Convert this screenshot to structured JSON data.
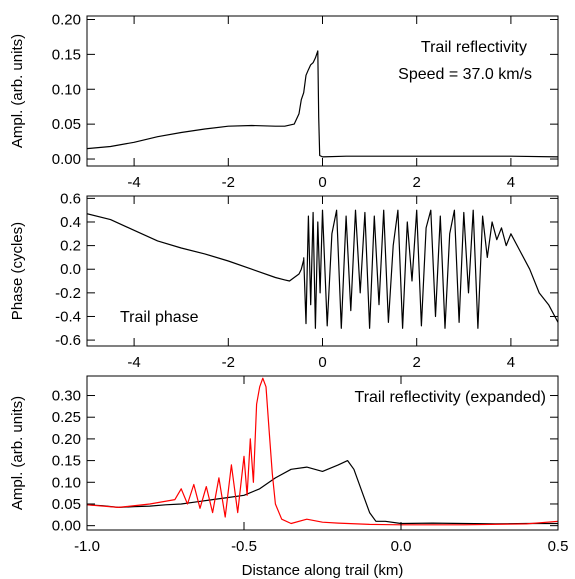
{
  "chart_data": [
    {
      "type": "line",
      "xlabel": "",
      "ylabel": "Ampl. (arb. units)",
      "xlim": [
        -5,
        5
      ],
      "ylim": [
        -0.01,
        0.205
      ],
      "xticks": [
        -4,
        -2,
        0,
        2,
        4
      ],
      "yticks": [
        0.0,
        0.05,
        0.1,
        0.15,
        0.2
      ],
      "ytick_decimals": 2,
      "annotations": [
        "Trail reflectivity",
        "Speed = 37.0 km/s"
      ],
      "series": [
        {
          "color": "#000000",
          "x": [
            -5.0,
            -4.5,
            -4.0,
            -3.5,
            -3.0,
            -2.5,
            -2.0,
            -1.5,
            -1.0,
            -0.8,
            -0.6,
            -0.5,
            -0.45,
            -0.4,
            -0.35,
            -0.3,
            -0.25,
            -0.2,
            -0.15,
            -0.1,
            -0.08,
            -0.06,
            0.0,
            0.5,
            1.0,
            2.0,
            3.0,
            4.0,
            5.0
          ],
          "y": [
            0.015,
            0.018,
            0.024,
            0.032,
            0.038,
            0.043,
            0.047,
            0.048,
            0.047,
            0.047,
            0.05,
            0.065,
            0.085,
            0.095,
            0.12,
            0.128,
            0.135,
            0.138,
            0.145,
            0.155,
            0.06,
            0.005,
            0.003,
            0.004,
            0.004,
            0.004,
            0.004,
            0.004,
            0.003
          ]
        }
      ]
    },
    {
      "type": "line",
      "xlabel": "",
      "ylabel": "Phase (cycles)",
      "xlim": [
        -5,
        5
      ],
      "ylim": [
        -0.65,
        0.62
      ],
      "xticks": [
        -4,
        -2,
        0,
        2,
        4
      ],
      "yticks": [
        -0.6,
        -0.4,
        -0.2,
        0.0,
        0.2,
        0.4,
        0.6
      ],
      "ytick_decimals": 1,
      "annotations": [
        "Trail phase"
      ],
      "series": [
        {
          "color": "#000000",
          "x": [
            -5.0,
            -4.5,
            -4.0,
            -3.5,
            -3.0,
            -2.5,
            -2.0,
            -1.5,
            -1.0,
            -0.8,
            -0.7,
            -0.6,
            -0.5,
            -0.45,
            -0.4
          ],
          "y": [
            0.47,
            0.42,
            0.33,
            0.24,
            0.18,
            0.13,
            0.07,
            0.0,
            -0.07,
            -0.09,
            -0.1,
            -0.07,
            -0.04,
            0.0,
            0.08
          ]
        },
        {
          "color": "#000000",
          "x": [
            -0.4,
            -0.35,
            -0.3,
            -0.25,
            -0.2,
            -0.15,
            -0.1,
            -0.05,
            0.0,
            0.1,
            0.2,
            0.3,
            0.4,
            0.5,
            0.6,
            0.7,
            0.8,
            0.9,
            1.0,
            1.1,
            1.2,
            1.3,
            1.4,
            1.5,
            1.6,
            1.7,
            1.8,
            1.9,
            2.0,
            2.1,
            2.2,
            2.3,
            2.4,
            2.5,
            2.6,
            2.7,
            2.8,
            2.9,
            3.0,
            3.1,
            3.2,
            3.3,
            3.4,
            3.5,
            3.6,
            3.7,
            3.8,
            3.9,
            4.0,
            4.2,
            4.4,
            4.6,
            4.8,
            5.0
          ],
          "y": [
            0.1,
            -0.46,
            0.45,
            -0.3,
            0.48,
            -0.5,
            0.4,
            -0.2,
            0.5,
            -0.48,
            0.3,
            0.5,
            -0.5,
            0.45,
            -0.35,
            0.5,
            -0.2,
            0.48,
            -0.5,
            0.45,
            -0.3,
            0.5,
            -0.45,
            0.2,
            0.5,
            -0.5,
            0.4,
            -0.1,
            0.5,
            -0.48,
            0.35,
            0.5,
            -0.4,
            0.45,
            -0.5,
            0.3,
            0.5,
            -0.45,
            0.48,
            -0.2,
            0.5,
            -0.5,
            0.45,
            0.1,
            0.4,
            0.25,
            0.35,
            0.2,
            0.3,
            0.15,
            0.0,
            -0.2,
            -0.3,
            -0.45
          ]
        }
      ]
    },
    {
      "type": "line",
      "xlabel": "Distance along trail (km)",
      "ylabel": "Ampl. (arb. units)",
      "xlim": [
        -1.0,
        0.5
      ],
      "ylim": [
        -0.01,
        0.345
      ],
      "xticks": [
        -1.0,
        -0.5,
        0.0,
        0.5
      ],
      "yticks": [
        0.0,
        0.05,
        0.1,
        0.15,
        0.2,
        0.25,
        0.3
      ],
      "ytick_decimals": 2,
      "annotations": [
        "Trail reflectivity (expanded)"
      ],
      "series": [
        {
          "color": "#000000",
          "x": [
            -1.0,
            -0.95,
            -0.9,
            -0.85,
            -0.8,
            -0.75,
            -0.7,
            -0.65,
            -0.6,
            -0.55,
            -0.5,
            -0.45,
            -0.4,
            -0.35,
            -0.3,
            -0.25,
            -0.2,
            -0.17,
            -0.15,
            -0.12,
            -0.1,
            -0.08,
            -0.05,
            0.0,
            0.1,
            0.2,
            0.3,
            0.4,
            0.5
          ],
          "y": [
            0.048,
            0.046,
            0.042,
            0.044,
            0.045,
            0.048,
            0.05,
            0.055,
            0.06,
            0.065,
            0.07,
            0.085,
            0.11,
            0.13,
            0.135,
            0.125,
            0.14,
            0.15,
            0.13,
            0.07,
            0.03,
            0.01,
            0.01,
            0.005,
            0.006,
            0.005,
            0.004,
            0.005,
            0.005
          ]
        },
        {
          "color": "#ff0000",
          "x": [
            -1.0,
            -0.9,
            -0.8,
            -0.72,
            -0.7,
            -0.68,
            -0.66,
            -0.64,
            -0.62,
            -0.6,
            -0.58,
            -0.56,
            -0.54,
            -0.52,
            -0.5,
            -0.49,
            -0.48,
            -0.47,
            -0.46,
            -0.45,
            -0.44,
            -0.43,
            -0.42,
            -0.41,
            -0.4,
            -0.38,
            -0.35,
            -0.3,
            -0.25,
            -0.2,
            -0.1,
            0.0,
            0.2,
            0.4,
            0.5
          ],
          "y": [
            0.048,
            0.042,
            0.05,
            0.06,
            0.085,
            0.05,
            0.095,
            0.04,
            0.09,
            0.03,
            0.11,
            0.02,
            0.14,
            0.03,
            0.16,
            0.07,
            0.2,
            0.1,
            0.28,
            0.32,
            0.34,
            0.32,
            0.22,
            0.12,
            0.05,
            0.015,
            0.005,
            0.015,
            0.008,
            0.006,
            0.003,
            0.002,
            0.002,
            0.004,
            0.01
          ]
        }
      ]
    }
  ]
}
